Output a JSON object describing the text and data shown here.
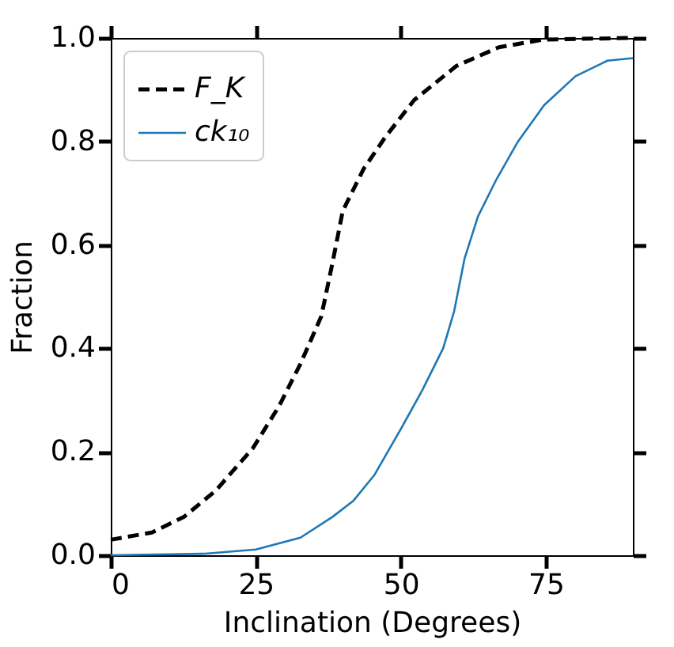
{
  "chart_data": {
    "type": "line",
    "xlabel": "Inclination (Degrees)",
    "ylabel": "Fraction",
    "xlim": [
      0,
      90
    ],
    "xticks": [
      0,
      25,
      50,
      75
    ],
    "ylim": [
      0,
      1.0
    ],
    "yticks": [
      {
        "value": 0,
        "label": "0.0"
      },
      0.2,
      0.4,
      0.6,
      0.8,
      {
        "value": 1,
        "label": "1.0"
      }
    ],
    "grid": false,
    "legend": "top left",
    "series": [
      {
        "name": "F_K",
        "color": "#000000",
        "line_style": "dashed",
        "x": [
          0,
          7.1,
          12.6,
          18.1,
          24.5,
          29.0,
          32.7,
          36.3,
          38.2,
          40.0,
          43.6,
          47.3,
          52.3,
          59.6,
          66.9,
          74.6,
          90
        ],
        "values": [
          0.03,
          0.044,
          0.074,
          0.125,
          0.207,
          0.288,
          0.37,
          0.462,
          0.564,
          0.666,
          0.747,
          0.808,
          0.88,
          0.946,
          0.982,
          0.997,
          1.0
        ]
      },
      {
        "name": "ck₁₀",
        "color": "#1f77b4",
        "line_style": "solid",
        "x": [
          0,
          16.3,
          25,
          32.7,
          38.2,
          41.8,
          45.5,
          50.2,
          53.7,
          57.3,
          59.2,
          61.0,
          63.3,
          66.5,
          70.1,
          74.7,
          80.1,
          85.6,
          90
        ],
        "values": [
          0,
          0.003,
          0.011,
          0.034,
          0.074,
          0.105,
          0.156,
          0.248,
          0.319,
          0.4,
          0.472,
          0.574,
          0.655,
          0.727,
          0.798,
          0.87,
          0.926,
          0.956,
          0.961
        ]
      }
    ]
  }
}
